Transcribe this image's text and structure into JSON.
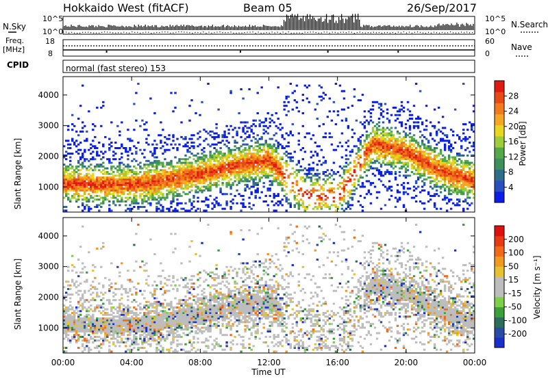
{
  "header": {
    "station": "Hokkaido West (fitACF)",
    "beam": "Beam 05",
    "date": "26/Sep/2017"
  },
  "strip_labels": {
    "nsky": "N.Sky",
    "nsearch": "N.Search",
    "freq_top": "Freq.",
    "freq_unit": "[MHz]",
    "nave": "Nave",
    "cpid": "CPID",
    "mode": "normal (fast stereo) 153",
    "noise_top_left": "10^5",
    "noise_bot_left": "10^0",
    "noise_top_right": "10^5",
    "noise_bot_right": "10^0",
    "freq_hi": "18",
    "freq_lo": "8",
    "nave_hi": "60",
    "nave_lo": "0"
  },
  "axes": {
    "ylabel": "Slant Range [km]",
    "xlabel": "Time UT",
    "y_ticks": [
      "1000",
      "2000",
      "3000",
      "4000"
    ],
    "x_ticks": [
      "00:00",
      "04:00",
      "08:00",
      "12:00",
      "16:00",
      "20:00",
      "00:00"
    ]
  },
  "power_scale": {
    "label": "Power [dB]",
    "ticks": [
      "4",
      "8",
      "12",
      "16",
      "20",
      "24",
      "28"
    ],
    "colors": [
      "#0a1ee6",
      "#2b4fbf",
      "#2e6e8a",
      "#3e8f5c",
      "#55a84a",
      "#9ecd3a",
      "#e8d71e",
      "#f5a623",
      "#f07a1c",
      "#e84a14",
      "#e01a10"
    ]
  },
  "velocity_scale": {
    "label": "Velocity [m s⁻¹]",
    "ticks": [
      "200",
      "100",
      "50",
      "15",
      "-15",
      "-50",
      "-100",
      "-200"
    ],
    "colors": [
      "#1a2ecc",
      "#2a4aa8",
      "#2d6e5a",
      "#3aa03a",
      "#7ed04a",
      "#bdbdbd",
      "#bdbdbd",
      "#e6c230",
      "#f09a20",
      "#f06a18",
      "#e83a12",
      "#e01010"
    ]
  },
  "chart_data": [
    {
      "type": "heatmap",
      "title": "Power",
      "ylabel": "Slant Range [km]",
      "xlabel": "Time UT",
      "ylim": [
        180,
        4600
      ],
      "xlim": [
        0,
        24
      ],
      "zlabel": "Power [dB]",
      "zlim": [
        0,
        32
      ],
      "echo_band_center_km": {
        "hours": [
          0,
          2,
          4,
          6,
          8,
          10,
          12,
          14,
          16,
          18,
          20,
          22,
          24
        ],
        "range_km": [
          1100,
          1050,
          1050,
          1200,
          1400,
          1650,
          1850,
          700,
          650,
          2400,
          2100,
          1500,
          1150
        ]
      }
    },
    {
      "type": "heatmap",
      "title": "Velocity",
      "ylabel": "Slant Range [km]",
      "xlabel": "Time UT",
      "ylim": [
        180,
        4600
      ],
      "xlim": [
        0,
        24
      ],
      "zlabel": "Velocity [m s⁻¹]",
      "zlim": [
        -200,
        200
      ]
    }
  ]
}
